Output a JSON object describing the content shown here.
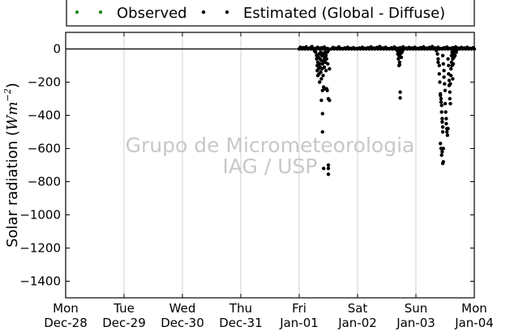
{
  "chart_data": {
    "type": "scatter",
    "ylabel": "Solar radiation (Wm⁻²)",
    "ylabel_main": "Solar radiation (",
    "ylabel_unit_base": "Wm",
    "ylabel_unit_exp": "−2",
    "ylabel_close": ")",
    "ylim": [
      -1500,
      100
    ],
    "yticks": [
      0,
      -200,
      -400,
      -600,
      -800,
      -1000,
      -1200,
      -1400
    ],
    "ytick_labels": [
      "0",
      "−200",
      "−400",
      "−600",
      "−800",
      "−1000",
      "−1200",
      "−1400"
    ],
    "x_range_days": [
      0,
      7
    ],
    "xticks": [
      {
        "day": "Mon",
        "date": "Dec-28"
      },
      {
        "day": "Tue",
        "date": "Dec-29"
      },
      {
        "day": "Wed",
        "date": "Dec-30"
      },
      {
        "day": "Thu",
        "date": "Dec-31"
      },
      {
        "day": "Fri",
        "date": "Jan-01"
      },
      {
        "day": "Sat",
        "date": "Jan-02"
      },
      {
        "day": "Sun",
        "date": "Jan-03"
      },
      {
        "day": "Mon",
        "date": "Jan-04"
      }
    ],
    "grid": "vertical",
    "legend_position": "top-center",
    "watermark": [
      "Grupo de Micrometeorologia",
      "IAG / USP"
    ],
    "series": [
      {
        "name": "Observed",
        "color": "#228b22",
        "points": []
      },
      {
        "name": "Estimated (Global - Diffuse)",
        "color": "#000000",
        "points": [
          [
            4.0,
            0
          ],
          [
            4.05,
            0
          ],
          [
            4.1,
            0
          ],
          [
            4.15,
            0
          ],
          [
            4.2,
            0
          ],
          [
            4.25,
            0
          ],
          [
            4.3,
            0
          ],
          [
            4.35,
            0
          ],
          [
            4.4,
            0
          ],
          [
            4.45,
            0
          ],
          [
            4.5,
            0
          ],
          [
            4.55,
            0
          ],
          [
            4.6,
            0
          ],
          [
            4.65,
            0
          ],
          [
            4.7,
            0
          ],
          [
            4.75,
            0
          ],
          [
            4.8,
            0
          ],
          [
            4.85,
            0
          ],
          [
            4.9,
            0
          ],
          [
            4.95,
            0
          ],
          [
            5.0,
            0
          ],
          [
            5.05,
            0
          ],
          [
            5.1,
            0
          ],
          [
            5.15,
            0
          ],
          [
            5.2,
            0
          ],
          [
            5.25,
            0
          ],
          [
            5.3,
            0
          ],
          [
            5.35,
            0
          ],
          [
            5.4,
            0
          ],
          [
            5.45,
            0
          ],
          [
            5.5,
            0
          ],
          [
            5.55,
            0
          ],
          [
            5.6,
            0
          ],
          [
            5.65,
            0
          ],
          [
            5.7,
            0
          ],
          [
            5.75,
            0
          ],
          [
            5.8,
            0
          ],
          [
            5.85,
            0
          ],
          [
            5.9,
            0
          ],
          [
            5.95,
            0
          ],
          [
            6.0,
            0
          ],
          [
            6.05,
            0
          ],
          [
            6.1,
            0
          ],
          [
            6.15,
            0
          ],
          [
            6.2,
            0
          ],
          [
            6.25,
            0
          ],
          [
            6.3,
            0
          ],
          [
            6.35,
            0
          ],
          [
            6.4,
            0
          ],
          [
            6.45,
            0
          ],
          [
            6.5,
            0
          ],
          [
            6.55,
            0
          ],
          [
            6.6,
            0
          ],
          [
            6.65,
            0
          ],
          [
            6.7,
            0
          ],
          [
            6.75,
            0
          ],
          [
            6.8,
            0
          ],
          [
            6.85,
            0
          ],
          [
            6.9,
            0
          ],
          [
            6.95,
            0
          ],
          [
            7.0,
            0
          ],
          [
            4.02,
            10
          ],
          [
            4.04,
            5
          ],
          [
            4.07,
            8
          ],
          [
            4.12,
            12
          ],
          [
            4.18,
            6
          ],
          [
            4.22,
            14
          ],
          [
            4.28,
            4
          ],
          [
            4.32,
            10
          ],
          [
            4.38,
            7
          ],
          [
            4.43,
            11
          ],
          [
            4.48,
            3
          ],
          [
            4.58,
            9
          ],
          [
            4.63,
            5
          ],
          [
            4.68,
            12
          ],
          [
            4.73,
            2
          ],
          [
            4.78,
            6
          ],
          [
            4.83,
            10
          ],
          [
            4.88,
            4
          ],
          [
            4.93,
            8
          ],
          [
            4.98,
            3
          ],
          [
            5.03,
            6
          ],
          [
            5.08,
            10
          ],
          [
            5.13,
            4
          ],
          [
            5.18,
            8
          ],
          [
            5.23,
            12
          ],
          [
            5.28,
            5
          ],
          [
            5.33,
            9
          ],
          [
            5.38,
            14
          ],
          [
            5.43,
            6
          ],
          [
            5.48,
            10
          ],
          [
            5.53,
            3
          ],
          [
            5.58,
            7
          ],
          [
            5.63,
            11
          ],
          [
            5.68,
            4
          ],
          [
            5.73,
            8
          ],
          [
            5.78,
            12
          ],
          [
            5.83,
            5
          ],
          [
            5.88,
            9
          ],
          [
            5.93,
            6
          ],
          [
            5.98,
            10
          ],
          [
            6.03,
            4
          ],
          [
            6.08,
            8
          ],
          [
            6.13,
            12
          ],
          [
            6.18,
            5
          ],
          [
            6.23,
            9
          ],
          [
            6.28,
            14
          ],
          [
            6.33,
            6
          ],
          [
            6.38,
            10
          ],
          [
            6.43,
            3
          ],
          [
            6.48,
            7
          ],
          [
            6.53,
            11
          ],
          [
            6.58,
            4
          ],
          [
            6.63,
            8
          ],
          [
            6.68,
            12
          ],
          [
            6.73,
            5
          ],
          [
            6.78,
            9
          ],
          [
            6.83,
            6
          ],
          [
            6.88,
            10
          ],
          [
            6.93,
            4
          ],
          [
            6.98,
            8
          ],
          [
            4.26,
            -10
          ],
          [
            4.28,
            -20
          ],
          [
            4.3,
            -40
          ],
          [
            4.3,
            -60
          ],
          [
            4.31,
            -100
          ],
          [
            4.31,
            -130
          ],
          [
            4.32,
            -80
          ],
          [
            4.32,
            -160
          ],
          [
            4.33,
            -50
          ],
          [
            4.33,
            -120
          ],
          [
            4.34,
            -30
          ],
          [
            4.34,
            -150
          ],
          [
            4.35,
            -90
          ],
          [
            4.35,
            -200
          ],
          [
            4.36,
            -60
          ],
          [
            4.36,
            -110
          ],
          [
            4.37,
            -20
          ],
          [
            4.37,
            -140
          ],
          [
            4.38,
            -70
          ],
          [
            4.38,
            -180
          ],
          [
            4.38,
            -310
          ],
          [
            4.39,
            -40
          ],
          [
            4.39,
            -120
          ],
          [
            4.4,
            -90
          ],
          [
            4.4,
            -250
          ],
          [
            4.41,
            -30
          ],
          [
            4.41,
            -160
          ],
          [
            4.42,
            -70
          ],
          [
            4.42,
            -230
          ],
          [
            4.43,
            -50
          ],
          [
            4.43,
            -110
          ],
          [
            4.44,
            -240
          ],
          [
            4.44,
            -20
          ],
          [
            4.45,
            -80
          ],
          [
            4.46,
            -40
          ],
          [
            4.46,
            -130
          ],
          [
            4.47,
            -60
          ],
          [
            4.48,
            -20
          ],
          [
            4.49,
            -90
          ],
          [
            4.5,
            -10
          ],
          [
            4.4,
            -390
          ],
          [
            4.4,
            -500
          ],
          [
            4.42,
            -720
          ],
          [
            4.5,
            -300
          ],
          [
            4.52,
            -310
          ],
          [
            4.5,
            -700
          ],
          [
            4.5,
            -720
          ],
          [
            4.5,
            -755
          ],
          [
            4.47,
            -240
          ],
          [
            4.48,
            -250
          ],
          [
            4.52,
            -120
          ],
          [
            5.68,
            -10
          ],
          [
            5.69,
            -30
          ],
          [
            5.7,
            -60
          ],
          [
            5.7,
            -20
          ],
          [
            5.71,
            -40
          ],
          [
            5.72,
            -80
          ],
          [
            5.73,
            -30
          ],
          [
            5.74,
            -10
          ],
          [
            5.75,
            -50
          ],
          [
            5.76,
            -20
          ],
          [
            5.77,
            -10
          ],
          [
            5.71,
            -100
          ],
          [
            5.72,
            -15
          ],
          [
            5.73,
            -5
          ],
          [
            5.74,
            -25
          ],
          [
            5.73,
            -260
          ],
          [
            5.73,
            -295
          ],
          [
            5.72,
            -95
          ],
          [
            6.35,
            -10
          ],
          [
            6.37,
            -30
          ],
          [
            6.38,
            -60
          ],
          [
            6.38,
            -80
          ],
          [
            6.4,
            -100
          ],
          [
            6.4,
            -150
          ],
          [
            6.41,
            -200
          ],
          [
            6.42,
            -270
          ],
          [
            6.42,
            -280
          ],
          [
            6.43,
            -300
          ],
          [
            6.43,
            -320
          ],
          [
            6.44,
            -340
          ],
          [
            6.44,
            -380
          ],
          [
            6.45,
            -420
          ],
          [
            6.45,
            -440
          ],
          [
            6.46,
            -470
          ],
          [
            6.46,
            -500
          ],
          [
            6.42,
            -570
          ],
          [
            6.43,
            -600
          ],
          [
            6.44,
            -640
          ],
          [
            6.45,
            -620
          ],
          [
            6.46,
            -690
          ],
          [
            6.47,
            -680
          ],
          [
            6.47,
            -600
          ],
          [
            6.46,
            -40
          ],
          [
            6.47,
            -90
          ],
          [
            6.48,
            -130
          ],
          [
            6.48,
            -170
          ],
          [
            6.49,
            -210
          ],
          [
            6.5,
            -250
          ],
          [
            6.5,
            -330
          ],
          [
            6.51,
            -380
          ],
          [
            6.52,
            -420
          ],
          [
            6.52,
            -450
          ],
          [
            6.53,
            -480
          ],
          [
            6.53,
            -500
          ],
          [
            6.54,
            -520
          ],
          [
            6.55,
            -480
          ],
          [
            6.55,
            -60
          ],
          [
            6.56,
            -100
          ],
          [
            6.56,
            -150
          ],
          [
            6.57,
            -190
          ],
          [
            6.57,
            -220
          ],
          [
            6.58,
            -260
          ],
          [
            6.58,
            -300
          ],
          [
            6.59,
            -330
          ],
          [
            6.59,
            -210
          ],
          [
            6.6,
            -160
          ],
          [
            6.6,
            -120
          ],
          [
            6.61,
            -80
          ],
          [
            6.61,
            -40
          ],
          [
            6.62,
            -20
          ],
          [
            6.62,
            -100
          ],
          [
            6.63,
            -60
          ],
          [
            6.63,
            -180
          ],
          [
            6.64,
            -30
          ],
          [
            6.64,
            -90
          ],
          [
            6.65,
            -10
          ],
          [
            6.65,
            -50
          ],
          [
            6.66,
            -20
          ],
          [
            6.67,
            -40
          ],
          [
            6.68,
            -10
          ],
          [
            6.69,
            -20
          ],
          [
            6.7,
            -5
          ]
        ]
      }
    ]
  }
}
